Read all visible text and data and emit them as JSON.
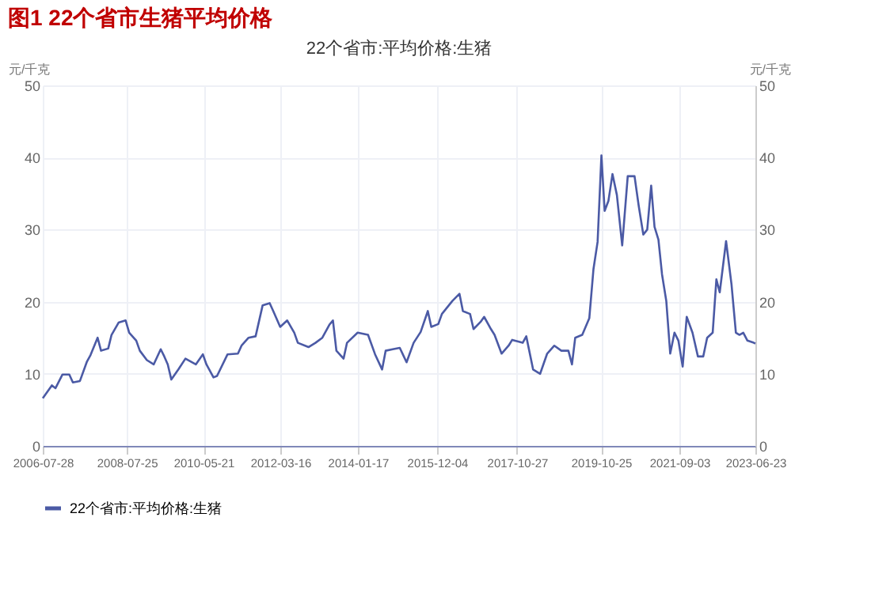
{
  "chart_data": {
    "type": "line",
    "title": "图1  22个省市生猪平均价格",
    "subtitle": "22个省市:平均价格:生猪",
    "ylabel": "元/千克",
    "y2label": "元/千克",
    "x": [
      "2006-07-28",
      "2006-10-15",
      "2006-11-15",
      "2007-01-15",
      "2007-03-15",
      "2007-04-15",
      "2007-06-15",
      "2007-08-15",
      "2007-09-15",
      "2007-11-15",
      "2007-12-15",
      "2008-02-15",
      "2008-03-15",
      "2008-05-15",
      "2008-07-15",
      "2008-08-15",
      "2008-10-15",
      "2008-11-15",
      "2009-01-15",
      "2009-03-15",
      "2009-05-15",
      "2009-06-15",
      "2009-07-15",
      "2009-08-15",
      "2009-10-15",
      "2009-12-15",
      "2010-03-15",
      "2010-05-15",
      "2010-06-15",
      "2010-08-15",
      "2010-09-15",
      "2010-12-15",
      "2011-03-15",
      "2011-04-15",
      "2011-06-15",
      "2011-08-15",
      "2011-10-15",
      "2011-12-15",
      "2012-01-15",
      "2012-03-15",
      "2012-05-15",
      "2012-07-15",
      "2012-08-15",
      "2012-11-15",
      "2013-01-15",
      "2013-03-15",
      "2013-05-15",
      "2013-06-15",
      "2013-07-15",
      "2013-09-15",
      "2013-10-15",
      "2014-01-15",
      "2014-04-15",
      "2014-06-15",
      "2014-08-15",
      "2014-09-15",
      "2014-11-15",
      "2015-01-15",
      "2015-03-15",
      "2015-05-15",
      "2015-07-15",
      "2015-09-15",
      "2015-10-15",
      "2015-12-15",
      "2016-01-15",
      "2016-04-15",
      "2016-06-15",
      "2016-07-15",
      "2016-09-15",
      "2016-10-15",
      "2016-12-15",
      "2017-01-15",
      "2017-03-15",
      "2017-04-15",
      "2017-06-15",
      "2017-08-15",
      "2017-09-15",
      "2017-12-15",
      "2018-01-15",
      "2018-03-15",
      "2018-05-15",
      "2018-07-15",
      "2018-09-15",
      "2018-11-15",
      "2019-01-15",
      "2019-02-15",
      "2019-03-15",
      "2019-05-15",
      "2019-07-15",
      "2019-08-20",
      "2019-09-25",
      "2019-10-28",
      "2019-11-25",
      "2019-12-28",
      "2020-02-01",
      "2020-03-10",
      "2020-04-25",
      "2020-06-12",
      "2020-08-10",
      "2020-09-15",
      "2020-10-25",
      "2020-11-28",
      "2021-01-01",
      "2021-01-30",
      "2021-03-05",
      "2021-04-05",
      "2021-05-12",
      "2021-06-15",
      "2021-07-22",
      "2021-08-25",
      "2021-10-01",
      "2021-11-05",
      "2021-12-25",
      "2022-02-10",
      "2022-03-28",
      "2022-05-01",
      "2022-06-18",
      "2022-07-20",
      "2022-08-18",
      "2022-10-12",
      "2022-11-28",
      "2023-01-05",
      "2023-02-05",
      "2023-03-10",
      "2023-04-15",
      "2023-06-09",
      "2023-06-23"
    ],
    "series": [
      {
        "name": "22个省市:平均价格:生猪",
        "color": "#4b5aa5",
        "values": [
          6.6,
          8.4,
          8.0,
          9.9,
          9.9,
          8.8,
          9.0,
          11.7,
          12.6,
          15.0,
          13.2,
          13.5,
          15.4,
          17.1,
          17.4,
          15.7,
          14.6,
          13.2,
          11.9,
          11.3,
          13.4,
          12.4,
          11.3,
          9.2,
          10.6,
          12.1,
          11.3,
          12.7,
          11.3,
          9.5,
          9.7,
          12.7,
          12.8,
          13.9,
          15.0,
          15.2,
          19.5,
          19.8,
          18.7,
          16.5,
          17.4,
          15.7,
          14.3,
          13.7,
          14.3,
          15.0,
          16.8,
          17.4,
          13.2,
          12.1,
          14.3,
          15.7,
          15.4,
          12.7,
          10.6,
          13.2,
          13.4,
          13.6,
          11.6,
          14.3,
          15.8,
          18.7,
          16.5,
          16.9,
          18.3,
          20.1,
          21.1,
          18.7,
          18.3,
          16.2,
          17.2,
          17.9,
          16.2,
          15.4,
          12.8,
          13.9,
          14.7,
          14.3,
          15.2,
          10.6,
          10.0,
          12.8,
          13.9,
          13.2,
          13.2,
          11.3,
          15.0,
          15.4,
          17.7,
          24.5,
          28.3,
          40.3,
          32.6,
          34.0,
          37.7,
          34.8,
          27.8,
          37.4,
          37.4,
          33.3,
          29.3,
          30.0,
          36.1,
          30.4,
          28.6,
          23.8,
          20.1,
          12.8,
          15.7,
          14.6,
          11.0,
          17.9,
          15.7,
          12.4,
          12.4,
          15.0,
          15.7,
          23.1,
          21.3,
          28.4,
          22.4,
          15.7,
          15.4,
          15.7,
          14.6,
          14.3,
          14.2
        ]
      }
    ],
    "xlim": [
      "2006-07-28",
      "2023-06-23"
    ],
    "xticks": [
      "2006-07-28",
      "2008-07-25",
      "2010-05-21",
      "2012-03-16",
      "2014-01-17",
      "2015-12-04",
      "2017-10-27",
      "2019-10-25",
      "2021-09-03",
      "2023-06-23"
    ],
    "ylim": [
      0,
      50
    ],
    "yticks": [
      0,
      10,
      20,
      30,
      40,
      50
    ],
    "y2lim": [
      0,
      50
    ],
    "y2ticks": [
      0,
      10,
      20,
      30,
      40,
      50
    ],
    "grid": true,
    "legend": "bottom",
    "line_style": "solid",
    "marker": "none"
  }
}
